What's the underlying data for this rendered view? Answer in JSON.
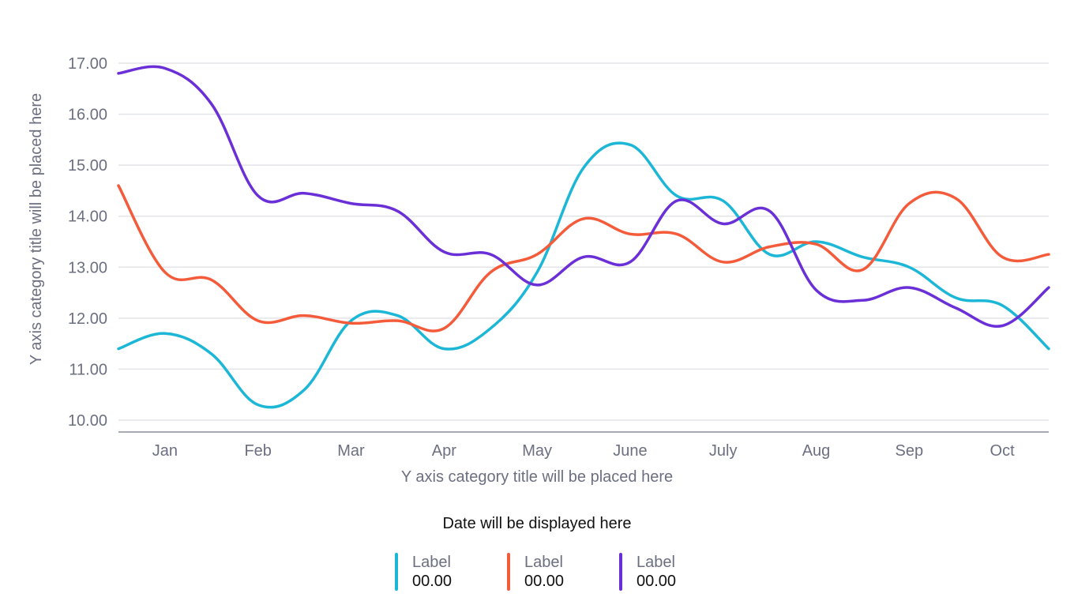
{
  "chart_data": {
    "type": "line",
    "categories": [
      "Jan",
      "Feb",
      "Mar",
      "Apr",
      "May",
      "June",
      "July",
      "Aug",
      "Sep",
      "Oct"
    ],
    "x": [
      0,
      0.5,
      1,
      1.5,
      2,
      2.5,
      3,
      3.5,
      4,
      4.5,
      5,
      5.5,
      6,
      6.5,
      7,
      7.5,
      8,
      8.5,
      9,
      9.5,
      10
    ],
    "series": [
      {
        "name": "Label",
        "color": "#1cb7d6",
        "values": [
          11.4,
          11.7,
          11.3,
          10.3,
          10.6,
          11.95,
          12.05,
          11.4,
          11.8,
          12.9,
          14.95,
          15.4,
          14.4,
          14.3,
          13.25,
          13.5,
          13.2,
          13.0,
          12.4,
          12.25,
          11.4
        ]
      },
      {
        "name": "Label",
        "color": "#f45b3a",
        "values": [
          14.6,
          12.9,
          12.75,
          11.95,
          12.05,
          11.9,
          11.95,
          11.8,
          12.9,
          13.25,
          13.95,
          13.65,
          13.65,
          13.1,
          13.4,
          13.45,
          12.95,
          14.25,
          14.35,
          13.2,
          13.25
        ]
      },
      {
        "name": "Label",
        "color": "#6a2fd6",
        "values": [
          16.8,
          16.9,
          16.2,
          14.4,
          14.45,
          14.25,
          14.1,
          13.3,
          13.25,
          12.65,
          13.2,
          13.1,
          14.3,
          13.85,
          14.1,
          12.55,
          12.35,
          12.6,
          12.2,
          11.85,
          12.6
        ]
      }
    ],
    "title": "",
    "xlabel": "Y axis category title will be placed here",
    "ylabel": "Y axis category title will be placed here",
    "ylim": [
      10,
      17
    ],
    "yticks": [
      "17.00",
      "16.00",
      "15.00",
      "14.00",
      "13.00",
      "12.00",
      "11.00",
      "10.00"
    ],
    "grid": true,
    "date_text": "Date will be displayed here",
    "legend": [
      {
        "label": "Label",
        "value": "00.00",
        "color": "#1cb7d6"
      },
      {
        "label": "Label",
        "value": "00.00",
        "color": "#f45b3a"
      },
      {
        "label": "Label",
        "value": "00.00",
        "color": "#6a2fd6"
      }
    ]
  }
}
